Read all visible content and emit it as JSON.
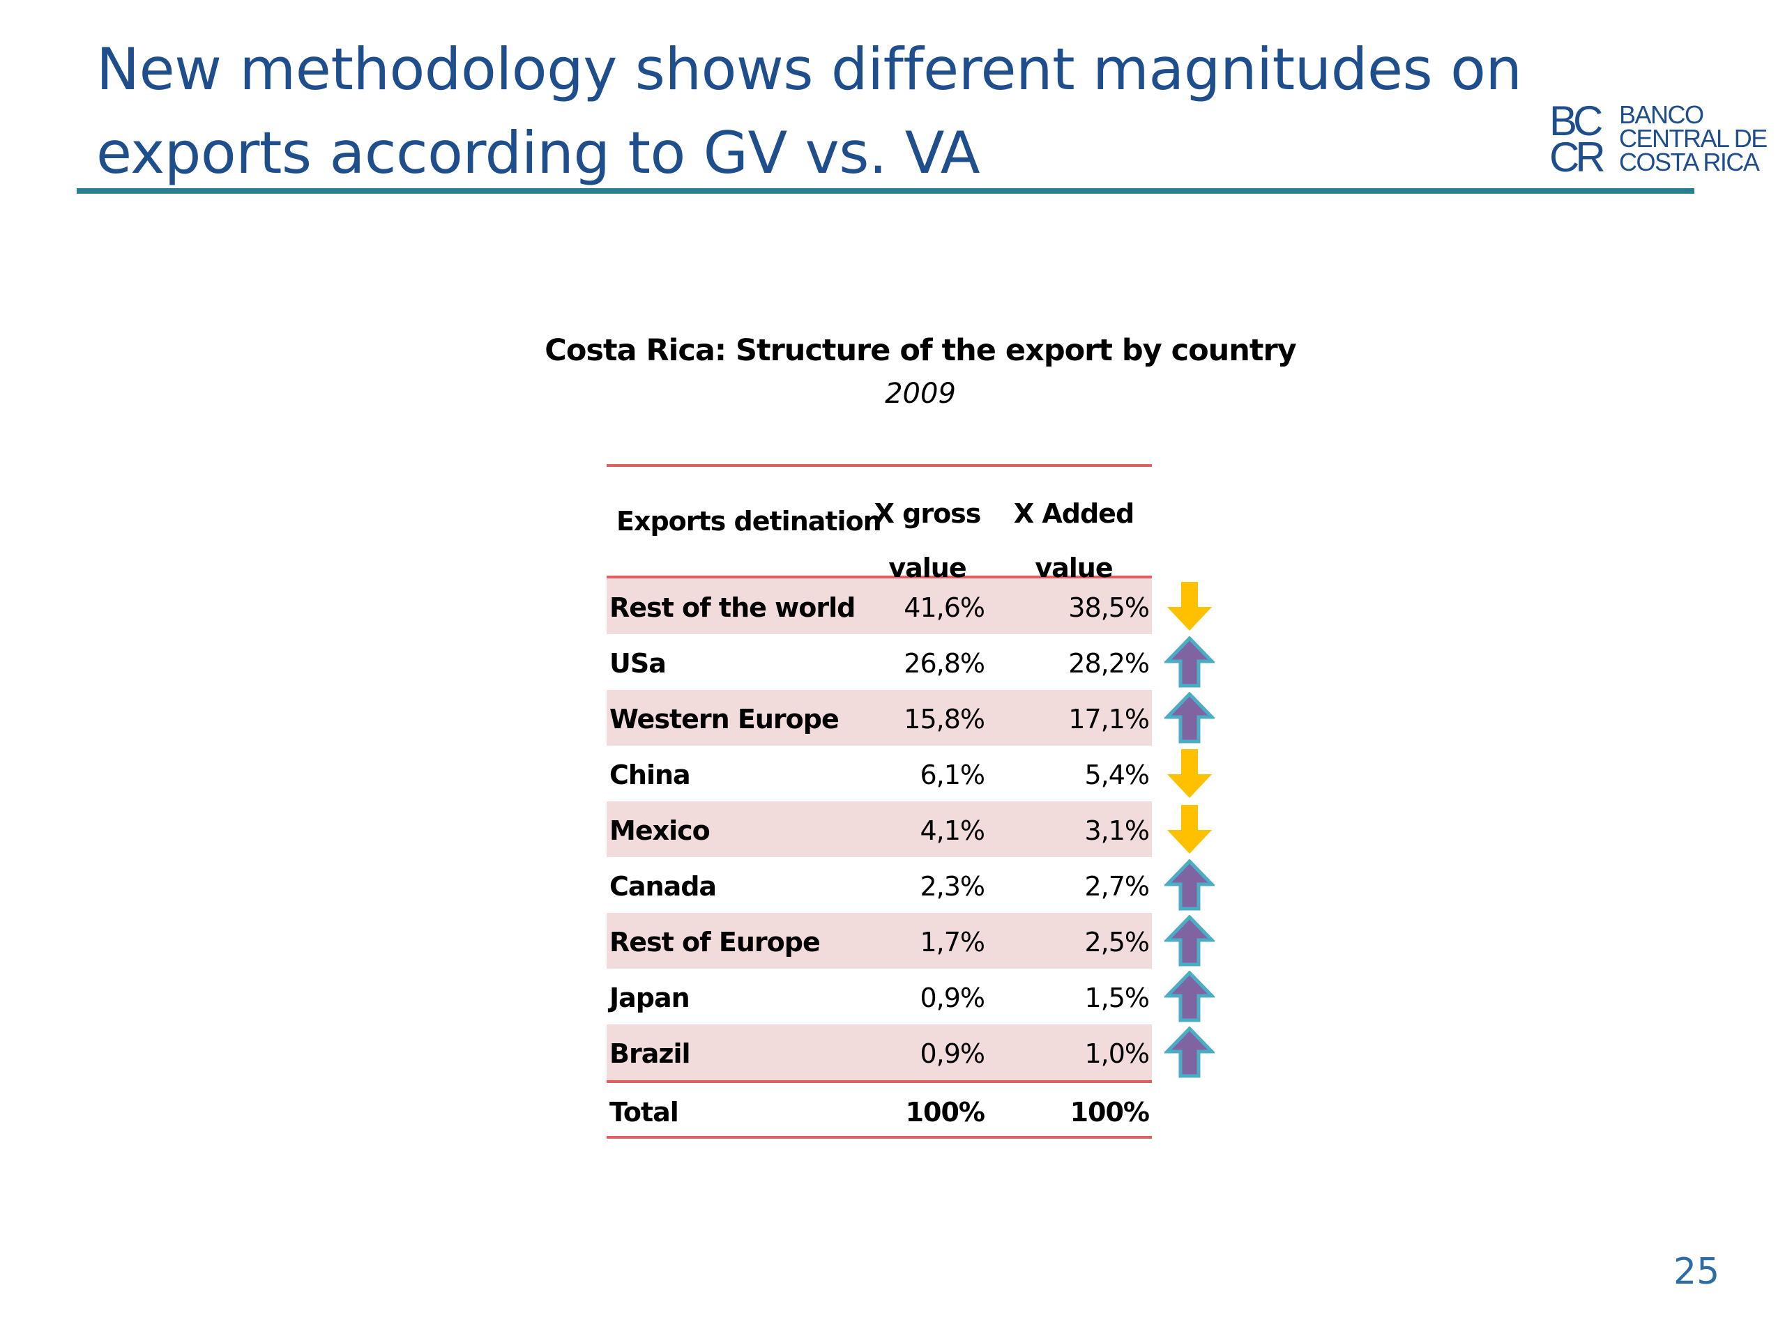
{
  "title": {
    "line1": "New methodology shows different magnitudes on",
    "line2": "exports according to  GV vs. VA"
  },
  "logo": {
    "mark_top": "BC",
    "mark_bottom": "CR",
    "line1": "BANCO",
    "line2": "CENTRAL DE",
    "line3": "COSTA RICA"
  },
  "table": {
    "title": "Costa Rica: Structure of the export by country",
    "subtitle": "2009",
    "headers": {
      "destination": "Exports detination",
      "gross_line1": "X gross",
      "gross_line2": "value",
      "added_line1": "X Added",
      "added_line2": "value"
    },
    "rows": [
      {
        "name": "Rest of the world",
        "gross": "41,6%",
        "added": "38,5%",
        "trend": "down"
      },
      {
        "name": "USa",
        "gross": "26,8%",
        "added": "28,2%",
        "trend": "up"
      },
      {
        "name": "Western Europe",
        "gross": "15,8%",
        "added": "17,1%",
        "trend": "up"
      },
      {
        "name": "China",
        "gross": "6,1%",
        "added": "5,4%",
        "trend": "down"
      },
      {
        "name": "Mexico",
        "gross": "4,1%",
        "added": "3,1%",
        "trend": "down"
      },
      {
        "name": "Canada",
        "gross": "2,3%",
        "added": "2,7%",
        "trend": "up"
      },
      {
        "name": "Rest of Europe",
        "gross": "1,7%",
        "added": "2,5%",
        "trend": "up"
      },
      {
        "name": "Japan",
        "gross": "0,9%",
        "added": "1,5%",
        "trend": "up"
      },
      {
        "name": "Brazil",
        "gross": "0,9%",
        "added": "1,0%",
        "trend": "up"
      }
    ],
    "total": {
      "name": "Total",
      "gross": "100%",
      "added": "100%"
    }
  },
  "colors": {
    "title": "#1f4e8c",
    "rule": "#2b7e91",
    "table_border": "#e06060",
    "row_shade": "#f2dcdb",
    "arrow_down": "#ffc000",
    "arrow_up_fill": "#8064a2",
    "arrow_up_outline": "#4bacc6"
  },
  "page_number": "25"
}
